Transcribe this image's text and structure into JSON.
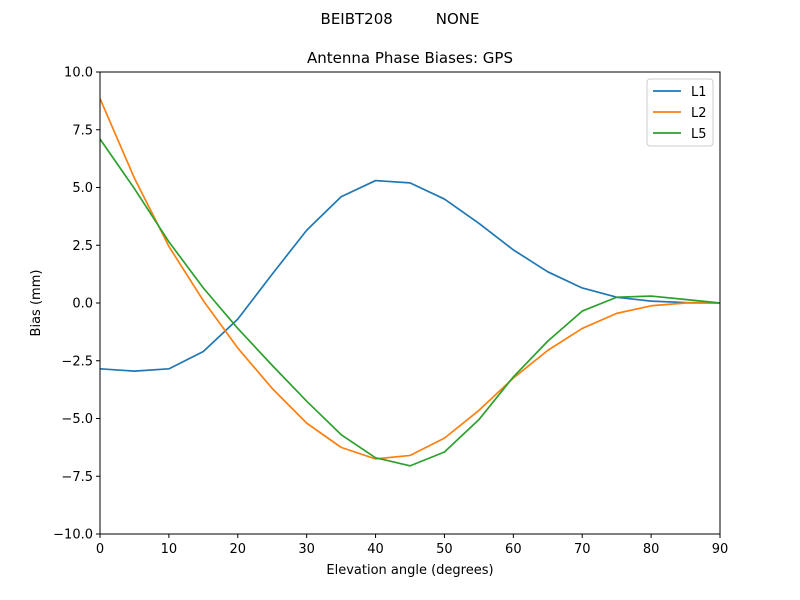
{
  "chart_data": {
    "type": "line",
    "suptitle": "BEIBT208         NONE",
    "title": "Antenna Phase Biases: GPS",
    "xlabel": "Elevation angle (degrees)",
    "ylabel": "Bias (mm)",
    "xlim": [
      0,
      90
    ],
    "ylim": [
      -10,
      10
    ],
    "xticks": [
      0,
      10,
      20,
      30,
      40,
      50,
      60,
      70,
      80,
      90
    ],
    "yticks": [
      -10.0,
      -7.5,
      -5.0,
      -2.5,
      0.0,
      2.5,
      5.0,
      7.5,
      10.0
    ],
    "xtick_labels": [
      "0",
      "10",
      "20",
      "30",
      "40",
      "50",
      "60",
      "70",
      "80",
      "90"
    ],
    "ytick_labels": [
      "−10.0",
      "−7.5",
      "−5.0",
      "−2.5",
      "0.0",
      "2.5",
      "5.0",
      "7.5",
      "10.0"
    ],
    "grid": false,
    "legend_position": "top-right",
    "x": [
      0,
      5,
      10,
      15,
      20,
      25,
      30,
      35,
      40,
      45,
      50,
      55,
      60,
      65,
      70,
      75,
      80,
      85,
      90
    ],
    "series": [
      {
        "name": "L1",
        "color": "#1f77b4",
        "values": [
          -2.85,
          -2.95,
          -2.85,
          -2.1,
          -0.7,
          1.25,
          3.15,
          4.6,
          5.3,
          5.2,
          4.5,
          3.45,
          2.3,
          1.35,
          0.65,
          0.25,
          0.08,
          0.02,
          0.0
        ]
      },
      {
        "name": "L2",
        "color": "#ff7f0e",
        "values": [
          8.85,
          5.4,
          2.45,
          0.1,
          -1.95,
          -3.7,
          -5.2,
          -6.25,
          -6.75,
          -6.6,
          -5.85,
          -4.65,
          -3.25,
          -2.05,
          -1.1,
          -0.45,
          -0.12,
          0.0,
          0.0
        ]
      },
      {
        "name": "L5",
        "color": "#2ca02c",
        "values": [
          7.1,
          4.95,
          2.65,
          0.65,
          -1.1,
          -2.7,
          -4.25,
          -5.7,
          -6.7,
          -7.05,
          -6.45,
          -5.05,
          -3.2,
          -1.65,
          -0.35,
          0.25,
          0.3,
          0.15,
          0.0
        ]
      }
    ]
  }
}
